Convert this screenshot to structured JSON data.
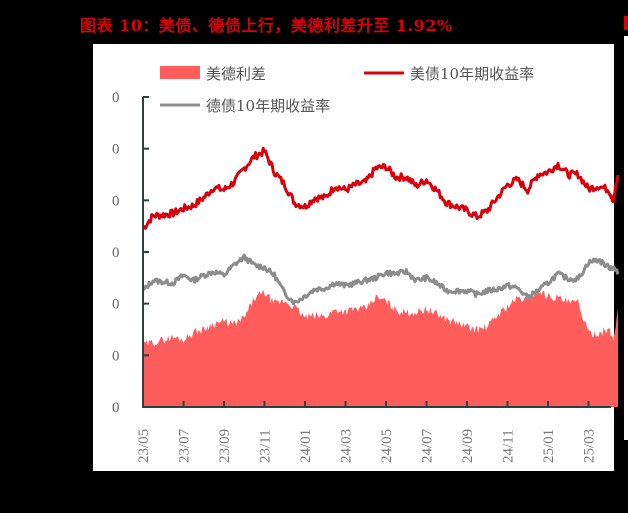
{
  "title": "图表 10：美债、德债上行，美德利差升至 1.92%",
  "colors": {
    "title": "#d9000b",
    "spread_fill": "#ff5c5c",
    "us10y_line": "#d9000b",
    "de10y_line": "#8c8c8c",
    "axis": "#2f3f3f"
  },
  "legend": {
    "spread": "美德利差",
    "us10y": "美债10年期收益率",
    "de10y": "德债10年期收益率"
  },
  "y_axis": {
    "tick_labels": [
      "0",
      "0",
      "0",
      "0",
      "0",
      "0",
      "0"
    ]
  },
  "x_axis": {
    "tick_labels": [
      "23/05",
      "23/07",
      "23/09",
      "23/11",
      "24/01",
      "24/03",
      "24/05",
      "24/07",
      "24/09",
      "24/11",
      "25/01",
      "25/03"
    ]
  },
  "chart_data": {
    "type": "line",
    "title": "美债、德债上行，美德利差升至 1.92%",
    "xlabel": "",
    "ylabel": "%",
    "ylim": [
      0,
      6
    ],
    "y_tick_labels_displayed": [
      "0",
      "0",
      "0",
      "0",
      "0",
      "0",
      "0"
    ],
    "y_tick_values_estimated": [
      6,
      5,
      4,
      3,
      2,
      1,
      0
    ],
    "x_tick_labels": [
      "23/05",
      "23/07",
      "23/09",
      "23/11",
      "24/01",
      "24/03",
      "24/05",
      "24/07",
      "24/09",
      "24/11",
      "25/01",
      "25/03"
    ],
    "legend_position": "top",
    "grid": false,
    "x": [
      "23/05/01",
      "23/05/16",
      "23/06/01",
      "23/06/16",
      "23/07/01",
      "23/07/16",
      "23/08/01",
      "23/08/16",
      "23/09/01",
      "23/09/16",
      "23/10/01",
      "23/10/16",
      "23/11/01",
      "23/11/16",
      "23/12/01",
      "23/12/16",
      "24/01/01",
      "24/01/16",
      "24/02/01",
      "24/02/16",
      "24/03/01",
      "24/03/16",
      "24/04/01",
      "24/04/16",
      "24/05/01",
      "24/05/16",
      "24/06/01",
      "24/06/16",
      "24/07/01",
      "24/07/16",
      "24/08/01",
      "24/08/16",
      "24/09/01",
      "24/09/16",
      "24/10/01",
      "24/10/16",
      "24/11/01",
      "24/11/16",
      "24/12/01",
      "24/12/16",
      "25/01/01",
      "25/01/16",
      "25/02/01",
      "25/02/16",
      "25/03/01",
      "25/03/16",
      "25/04/01",
      "25/04/08",
      "25/04/15"
    ],
    "series": [
      {
        "name": "美债10年期收益率",
        "type": "line",
        "values": [
          3.45,
          3.7,
          3.72,
          3.75,
          3.84,
          3.9,
          4.05,
          4.25,
          4.2,
          4.35,
          4.62,
          4.85,
          4.95,
          4.55,
          4.3,
          3.95,
          3.88,
          4.05,
          4.05,
          4.28,
          4.2,
          4.3,
          4.35,
          4.62,
          4.65,
          4.45,
          4.45,
          4.28,
          4.4,
          4.2,
          3.95,
          3.88,
          3.8,
          3.68,
          3.8,
          4.05,
          4.3,
          4.4,
          4.2,
          4.5,
          4.55,
          4.7,
          4.5,
          4.5,
          4.22,
          4.28,
          4.2,
          4.0,
          4.49
        ]
      },
      {
        "name": "德债10年期收益率",
        "type": "line",
        "values": [
          2.25,
          2.45,
          2.42,
          2.4,
          2.55,
          2.45,
          2.55,
          2.62,
          2.55,
          2.75,
          2.9,
          2.75,
          2.7,
          2.55,
          2.2,
          2.02,
          2.15,
          2.28,
          2.3,
          2.4,
          2.35,
          2.4,
          2.45,
          2.5,
          2.6,
          2.58,
          2.62,
          2.45,
          2.5,
          2.4,
          2.25,
          2.25,
          2.25,
          2.18,
          2.25,
          2.28,
          2.35,
          2.3,
          2.12,
          2.25,
          2.4,
          2.58,
          2.48,
          2.48,
          2.8,
          2.85,
          2.7,
          2.7,
          2.57
        ]
      },
      {
        "name": "美德利差",
        "type": "area",
        "values": [
          1.2,
          1.25,
          1.3,
          1.35,
          1.3,
          1.45,
          1.5,
          1.62,
          1.65,
          1.6,
          1.72,
          2.1,
          2.22,
          2.0,
          2.05,
          1.93,
          1.73,
          1.77,
          1.75,
          1.88,
          1.85,
          1.9,
          1.9,
          2.12,
          2.05,
          1.87,
          1.83,
          1.83,
          1.9,
          1.8,
          1.7,
          1.63,
          1.55,
          1.5,
          1.55,
          1.77,
          1.95,
          2.1,
          2.08,
          2.25,
          2.15,
          2.12,
          2.02,
          2.02,
          1.42,
          1.43,
          1.5,
          1.3,
          1.92
        ]
      }
    ],
    "annotations": [
      "美德利差升至 1.92%"
    ]
  }
}
